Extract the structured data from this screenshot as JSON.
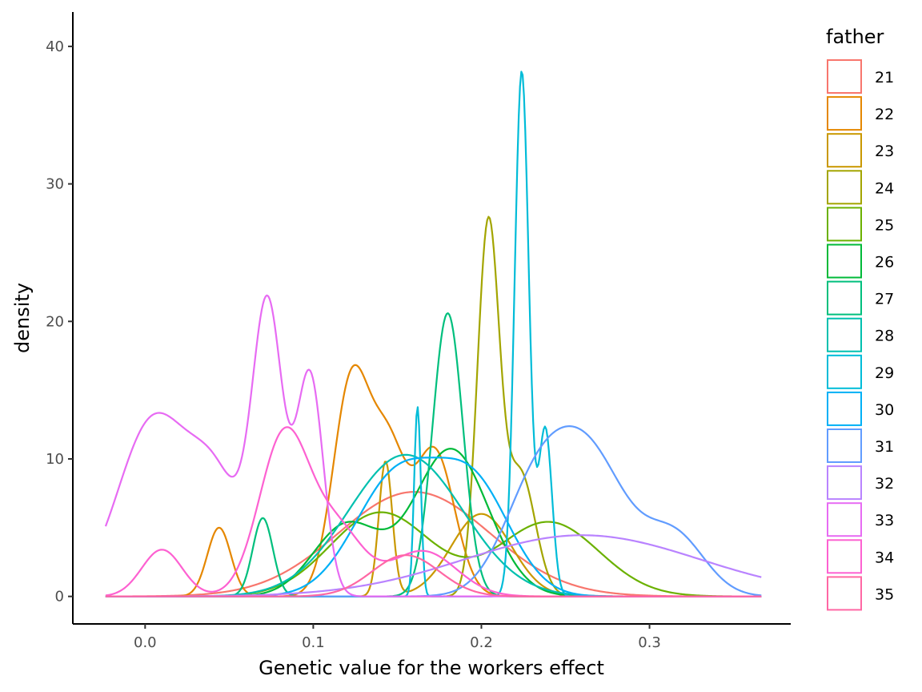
{
  "chart_data": {
    "type": "line",
    "xlabel": "Genetic value for the workers effect",
    "ylabel": "density",
    "xlim": [
      -0.043,
      0.384
    ],
    "ylim": [
      -2,
      42.5
    ],
    "x_ticks": [
      0.0,
      0.1,
      0.2,
      0.3
    ],
    "x_tick_labels": [
      "0.0",
      "0.1",
      "0.2",
      "0.3"
    ],
    "y_ticks": [
      0,
      10,
      20,
      30,
      40
    ],
    "y_tick_labels": [
      "0",
      "10",
      "20",
      "30",
      "40"
    ],
    "x_range": [
      -0.0235,
      0.3665
    ],
    "grid": false,
    "legend": {
      "title": "father",
      "position": "right"
    },
    "series": [
      {
        "name": "21",
        "color": "#F8766D",
        "peaks": [
          [
            0.16,
            7.6,
            0.045
          ]
        ]
      },
      {
        "name": "22",
        "color": "#E58700",
        "peaks": [
          [
            0.044,
            5.0,
            0.007
          ],
          [
            0.123,
            15.8,
            0.011
          ],
          [
            0.145,
            9.5,
            0.01
          ],
          [
            0.172,
            10.6,
            0.012
          ]
        ]
      },
      {
        "name": "23",
        "color": "#C99800",
        "peaks": [
          [
            0.143,
            9.8,
            0.004
          ],
          [
            0.2,
            6.0,
            0.018
          ]
        ]
      },
      {
        "name": "24",
        "color": "#A3A500",
        "peaks": [
          [
            0.204,
            26.6,
            0.0065
          ],
          [
            0.223,
            9.0,
            0.009
          ]
        ]
      },
      {
        "name": "25",
        "color": "#6BB100",
        "peaks": [
          [
            0.14,
            6.1,
            0.03
          ],
          [
            0.24,
            5.4,
            0.03
          ]
        ]
      },
      {
        "name": "26",
        "color": "#00BA38",
        "peaks": [
          [
            0.12,
            5.2,
            0.02
          ],
          [
            0.182,
            10.7,
            0.022
          ]
        ]
      },
      {
        "name": "27",
        "color": "#00BF7D",
        "peaks": [
          [
            0.07,
            5.7,
            0.006
          ],
          [
            0.18,
            20.6,
            0.009
          ]
        ]
      },
      {
        "name": "28",
        "color": "#00C0AF",
        "peaks": [
          [
            0.155,
            10.3,
            0.034
          ]
        ]
      },
      {
        "name": "29",
        "color": "#00BCD8",
        "peaks": [
          [
            0.162,
            13.8,
            0.002
          ],
          [
            0.224,
            38.2,
            0.0042
          ],
          [
            0.238,
            12.2,
            0.004
          ]
        ]
      },
      {
        "name": "30",
        "color": "#00B0F6",
        "peaks": [
          [
            0.15,
            8.7,
            0.025
          ],
          [
            0.196,
            7.6,
            0.022
          ]
        ]
      },
      {
        "name": "31",
        "color": "#619CFF",
        "peaks": [
          [
            0.232,
            7.1,
            0.02
          ],
          [
            0.265,
            9.6,
            0.022
          ],
          [
            0.315,
            4.3,
            0.018
          ]
        ]
      },
      {
        "name": "32",
        "color": "#B983FF",
        "peaks": [
          [
            0.26,
            4.45,
            0.07
          ]
        ]
      },
      {
        "name": "33",
        "color": "#E76BF3",
        "peaks": [
          [
            0.005,
            12.8,
            0.021
          ],
          [
            0.043,
            7.4,
            0.016
          ],
          [
            0.073,
            20.4,
            0.009
          ],
          [
            0.098,
            16.0,
            0.008
          ]
        ]
      },
      {
        "name": "34",
        "color": "#FD61D1",
        "peaks": [
          [
            0.01,
            3.4,
            0.012
          ],
          [
            0.083,
            11.8,
            0.015
          ],
          [
            0.115,
            4.5,
            0.015
          ],
          [
            0.165,
            3.3,
            0.02
          ]
        ]
      },
      {
        "name": "35",
        "color": "#FF67A4",
        "peaks": [
          [
            0.155,
            3.0,
            0.02
          ]
        ]
      }
    ]
  }
}
